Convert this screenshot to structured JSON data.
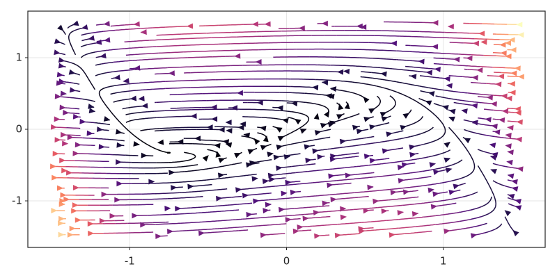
{
  "chart_data": {
    "type": "streamplot",
    "colormap": "magma",
    "xlim": [
      -1.65,
      1.65
    ],
    "ylim": [
      -1.65,
      1.65
    ],
    "xticks": [
      -1,
      0,
      1
    ],
    "yticks": [
      -1,
      0,
      1
    ],
    "grid": true
  }
}
